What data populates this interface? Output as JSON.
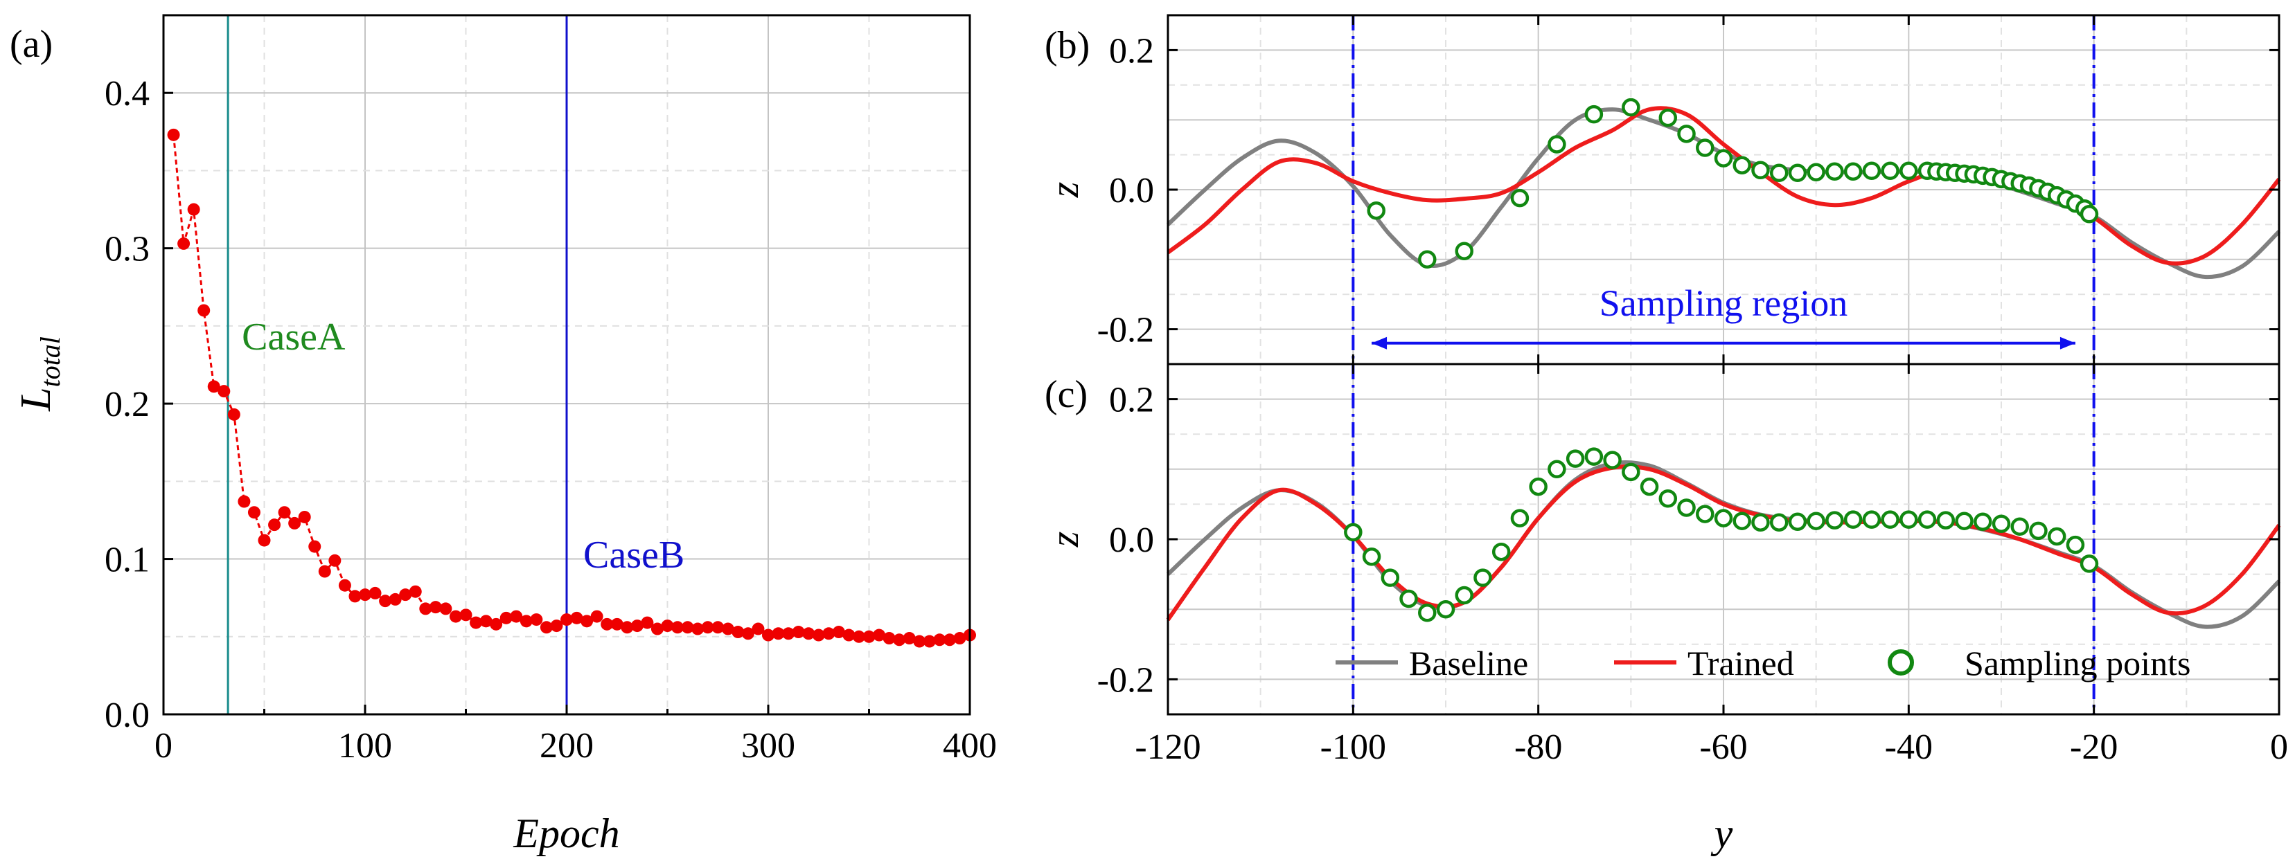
{
  "chart_data": [
    {
      "id": "a",
      "type": "scatter",
      "panel_label": "(a)",
      "title": "",
      "xlabel": "Epoch",
      "ylabel_main": "L",
      "ylabel_sub": "total",
      "xlim": [
        0,
        400
      ],
      "ylim": [
        0.0,
        0.45
      ],
      "xticks": [
        0,
        100,
        200,
        300,
        400
      ],
      "xtick_labels": [
        "0",
        "100",
        "200",
        "300",
        "400"
      ],
      "yticks": [
        0.0,
        0.1,
        0.2,
        0.3,
        0.4
      ],
      "ytick_labels": [
        "0.0",
        "0.1",
        "0.2",
        "0.3",
        "0.4"
      ],
      "grid": true,
      "colors": {
        "series": "#ee0000",
        "caseA": "#1a8c8c",
        "caseB": "#1010cc",
        "caseA_text": "#1f8a1f",
        "caseB_text": "#1010cc"
      },
      "vlines": [
        {
          "name": "CaseA",
          "x": 32,
          "color": "#1a8c8c",
          "text_color": "#1f8a1f"
        },
        {
          "name": "CaseB",
          "x": 200,
          "color": "#1010cc",
          "text_color": "#1010cc"
        }
      ],
      "series": [
        {
          "name": "L_total",
          "x": [
            5,
            10,
            15,
            20,
            25,
            30,
            35,
            40,
            45,
            50,
            55,
            60,
            65,
            70,
            75,
            80,
            85,
            90,
            95,
            100,
            105,
            110,
            115,
            120,
            125,
            130,
            135,
            140,
            145,
            150,
            155,
            160,
            165,
            170,
            175,
            180,
            185,
            190,
            195,
            200,
            205,
            210,
            215,
            220,
            225,
            230,
            235,
            240,
            245,
            250,
            255,
            260,
            265,
            270,
            275,
            280,
            285,
            290,
            295,
            300,
            305,
            310,
            315,
            320,
            325,
            330,
            335,
            340,
            345,
            350,
            355,
            360,
            365,
            370,
            375,
            380,
            385,
            390,
            395,
            400
          ],
          "y": [
            0.373,
            0.303,
            0.325,
            0.26,
            0.211,
            0.208,
            0.193,
            0.137,
            0.13,
            0.112,
            0.122,
            0.13,
            0.123,
            0.127,
            0.108,
            0.092,
            0.099,
            0.083,
            0.076,
            0.077,
            0.078,
            0.073,
            0.074,
            0.077,
            0.079,
            0.068,
            0.069,
            0.068,
            0.063,
            0.064,
            0.059,
            0.06,
            0.058,
            0.062,
            0.063,
            0.06,
            0.061,
            0.056,
            0.057,
            0.061,
            0.062,
            0.06,
            0.063,
            0.058,
            0.058,
            0.056,
            0.057,
            0.059,
            0.055,
            0.057,
            0.056,
            0.056,
            0.055,
            0.056,
            0.056,
            0.055,
            0.053,
            0.052,
            0.055,
            0.051,
            0.052,
            0.052,
            0.053,
            0.052,
            0.051,
            0.052,
            0.053,
            0.051,
            0.05,
            0.05,
            0.051,
            0.049,
            0.048,
            0.049,
            0.047,
            0.047,
            0.048,
            0.048,
            0.049,
            0.051
          ]
        }
      ]
    },
    {
      "id": "b",
      "type": "line",
      "panel_label": "(b)",
      "xlabel": "",
      "ylabel": "z",
      "xlim": [
        -120,
        0
      ],
      "ylim": [
        -0.25,
        0.25
      ],
      "yticks": [
        -0.2,
        0.0,
        0.2
      ],
      "ytick_labels": [
        "-0.2",
        "0.0",
        "0.2"
      ],
      "grid": true,
      "vlines": [
        -100,
        -20
      ],
      "annotation": {
        "text": "Sampling region",
        "from": -98,
        "to": -22,
        "y": -0.22,
        "color": "#1010ee"
      },
      "colors": {
        "baseline": "#808080",
        "trained": "#ee1c1c",
        "points": "#118811",
        "region": "#1010ee"
      },
      "series": [
        {
          "name": "Baseline",
          "x": [
            -120,
            -116,
            -112,
            -108,
            -104,
            -100,
            -96,
            -92,
            -88,
            -84,
            -80,
            -76,
            -72,
            -68,
            -64,
            -60,
            -56,
            -52,
            -48,
            -44,
            -40,
            -36,
            -32,
            -28,
            -24,
            -20,
            -16,
            -12,
            -8,
            -4,
            0
          ],
          "y": [
            -0.05,
            0.0,
            0.045,
            0.07,
            0.052,
            0.005,
            -0.065,
            -0.108,
            -0.09,
            -0.025,
            0.045,
            0.1,
            0.115,
            0.1,
            0.08,
            0.052,
            0.035,
            0.028,
            0.025,
            0.025,
            0.026,
            0.024,
            0.014,
            -0.002,
            -0.02,
            -0.038,
            -0.075,
            -0.105,
            -0.125,
            -0.11,
            -0.06
          ]
        },
        {
          "name": "Trained",
          "x": [
            -120,
            -116,
            -112,
            -108,
            -104,
            -100,
            -96,
            -92,
            -88,
            -84,
            -80,
            -76,
            -72,
            -68,
            -64,
            -60,
            -56,
            -52,
            -48,
            -44,
            -40,
            -36,
            -32,
            -28,
            -24,
            -20,
            -16,
            -12,
            -8,
            -4,
            0
          ],
          "y": [
            -0.09,
            -0.05,
            0.0,
            0.04,
            0.038,
            0.012,
            -0.005,
            -0.015,
            -0.013,
            -0.005,
            0.025,
            0.06,
            0.085,
            0.115,
            0.108,
            0.065,
            0.025,
            -0.01,
            -0.022,
            -0.012,
            0.012,
            0.028,
            0.022,
            0.005,
            -0.015,
            -0.04,
            -0.08,
            -0.105,
            -0.095,
            -0.05,
            0.015
          ]
        },
        {
          "name": "Sampling points",
          "x": [
            -97.5,
            -92,
            -88,
            -82,
            -78,
            -74,
            -70,
            -66,
            -64,
            -62,
            -60,
            -58,
            -56,
            -54,
            -52,
            -50,
            -48,
            -46,
            -44,
            -42,
            -40,
            -38,
            -37,
            -36,
            -35,
            -34,
            -33,
            -32,
            -31,
            -30,
            -29,
            -28,
            -27,
            -26,
            -25,
            -24,
            -23,
            -22,
            -21,
            -20.5
          ],
          "y": [
            -0.03,
            -0.1,
            -0.088,
            -0.012,
            0.065,
            0.108,
            0.118,
            0.103,
            0.08,
            0.06,
            0.045,
            0.035,
            0.028,
            0.024,
            0.024,
            0.025,
            0.026,
            0.026,
            0.027,
            0.027,
            0.027,
            0.027,
            0.026,
            0.025,
            0.024,
            0.023,
            0.022,
            0.02,
            0.018,
            0.015,
            0.012,
            0.009,
            0.006,
            0.002,
            -0.003,
            -0.008,
            -0.014,
            -0.02,
            -0.027,
            -0.035
          ]
        }
      ]
    },
    {
      "id": "c",
      "type": "line",
      "panel_label": "(c)",
      "xlabel": "y",
      "ylabel": "z",
      "xlim": [
        -120,
        0
      ],
      "ylim": [
        -0.25,
        0.25
      ],
      "xticks": [
        -120,
        -100,
        -80,
        -60,
        -40,
        -20,
        0
      ],
      "xtick_labels": [
        "-120",
        "-100",
        "-80",
        "-60",
        "-40",
        "-20",
        "0"
      ],
      "yticks": [
        -0.2,
        0.0,
        0.2
      ],
      "ytick_labels": [
        "-0.2",
        "0.0",
        "0.2"
      ],
      "grid": true,
      "vlines": [
        -100,
        -20
      ],
      "legend": {
        "placement": "bottom",
        "entries": [
          "Baseline",
          "Trained",
          "Sampling points"
        ]
      },
      "colors": {
        "baseline": "#808080",
        "trained": "#ee1c1c",
        "points": "#118811",
        "region": "#1010ee"
      },
      "series": [
        {
          "name": "Baseline",
          "x": [
            -120,
            -116,
            -112,
            -108,
            -104,
            -100,
            -96,
            -92,
            -88,
            -84,
            -80,
            -76,
            -72,
            -68,
            -64,
            -60,
            -56,
            -52,
            -48,
            -44,
            -40,
            -36,
            -32,
            -28,
            -24,
            -20,
            -16,
            -12,
            -8,
            -4,
            0
          ],
          "y": [
            -0.05,
            0.0,
            0.045,
            0.07,
            0.052,
            0.005,
            -0.06,
            -0.095,
            -0.09,
            -0.04,
            0.03,
            0.085,
            0.108,
            0.105,
            0.08,
            0.052,
            0.035,
            0.028,
            0.025,
            0.025,
            0.026,
            0.024,
            0.014,
            0.0,
            -0.018,
            -0.038,
            -0.075,
            -0.105,
            -0.125,
            -0.11,
            -0.06
          ]
        },
        {
          "name": "Trained",
          "x": [
            -120,
            -116,
            -112,
            -108,
            -104,
            -100,
            -96,
            -92,
            -88,
            -84,
            -80,
            -76,
            -72,
            -68,
            -64,
            -60,
            -56,
            -52,
            -48,
            -44,
            -40,
            -36,
            -32,
            -28,
            -24,
            -20,
            -16,
            -12,
            -8,
            -4,
            0
          ],
          "y": [
            -0.115,
            -0.04,
            0.03,
            0.07,
            0.05,
            0.005,
            -0.055,
            -0.092,
            -0.09,
            -0.04,
            0.03,
            0.082,
            0.102,
            0.1,
            0.078,
            0.05,
            0.034,
            0.026,
            0.024,
            0.025,
            0.026,
            0.024,
            0.015,
            0.0,
            -0.02,
            -0.04,
            -0.078,
            -0.105,
            -0.095,
            -0.05,
            0.02
          ]
        },
        {
          "name": "Sampling points",
          "x": [
            -100,
            -98,
            -96,
            -94,
            -92,
            -90,
            -88,
            -86,
            -84,
            -82,
            -80,
            -78,
            -76,
            -74,
            -72,
            -70,
            -68,
            -66,
            -64,
            -62,
            -60,
            -58,
            -56,
            -54,
            -52,
            -50,
            -48,
            -46,
            -44,
            -42,
            -40,
            -38,
            -36,
            -34,
            -32,
            -30,
            -28,
            -26,
            -24,
            -22,
            -20.5
          ],
          "y": [
            0.01,
            -0.025,
            -0.055,
            -0.085,
            -0.105,
            -0.1,
            -0.08,
            -0.055,
            -0.018,
            0.03,
            0.075,
            0.1,
            0.115,
            0.118,
            0.113,
            0.096,
            0.075,
            0.058,
            0.045,
            0.036,
            0.03,
            0.026,
            0.024,
            0.024,
            0.025,
            0.026,
            0.027,
            0.028,
            0.028,
            0.028,
            0.028,
            0.028,
            0.027,
            0.026,
            0.025,
            0.022,
            0.018,
            0.012,
            0.004,
            -0.008,
            -0.035
          ]
        }
      ]
    }
  ]
}
